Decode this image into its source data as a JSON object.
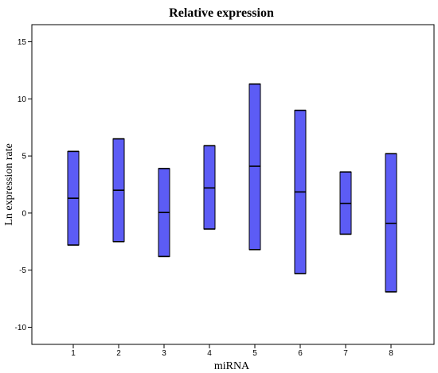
{
  "chart_data": {
    "type": "bar",
    "title": "Relative expression",
    "xlabel": "miRNA",
    "ylabel": "Ln expression rate",
    "categories": [
      "1",
      "2",
      "3",
      "4",
      "5",
      "6",
      "7",
      "8"
    ],
    "ylim": [
      -11.5,
      16.5
    ],
    "yticks": [
      15,
      10,
      5,
      0,
      -5,
      -10
    ],
    "grid": false,
    "bar_color": "#5c5cf5",
    "series": [
      {
        "category": "1",
        "low": -2.8,
        "mid": 1.3,
        "high": 5.4
      },
      {
        "category": "2",
        "low": -2.5,
        "mid": 2.0,
        "high": 6.5
      },
      {
        "category": "3",
        "low": -3.8,
        "mid": 0.05,
        "high": 3.9
      },
      {
        "category": "4",
        "low": -1.4,
        "mid": 2.2,
        "high": 5.9
      },
      {
        "category": "5",
        "low": -3.2,
        "mid": 4.1,
        "high": 11.3
      },
      {
        "category": "6",
        "low": -5.3,
        "mid": 1.85,
        "high": 9.0
      },
      {
        "category": "7",
        "low": -1.85,
        "mid": 0.85,
        "high": 3.6
      },
      {
        "category": "8",
        "low": -6.9,
        "mid": -0.9,
        "high": 5.2
      }
    ]
  }
}
